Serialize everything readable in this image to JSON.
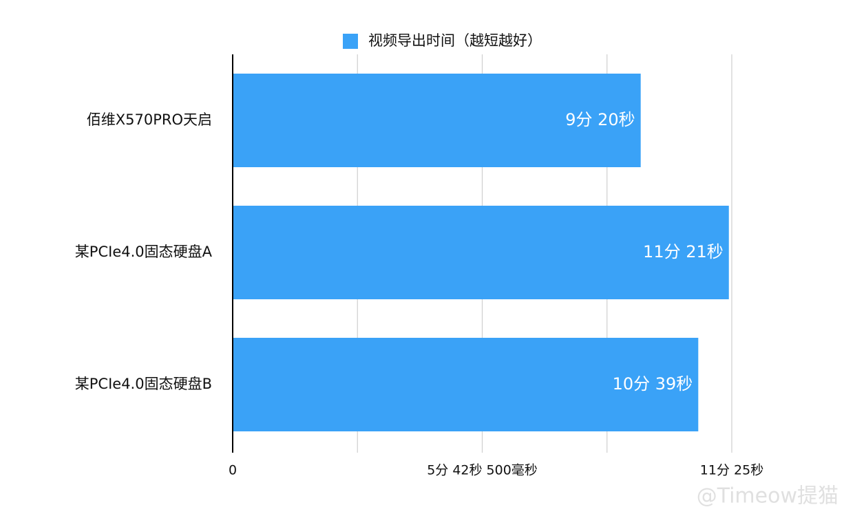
{
  "chart_data": {
    "type": "hbar",
    "legend": "视频导出时间（越短越好）",
    "color": "#3aa2f7",
    "categories": [
      "佰维X570PRO天启",
      "某PCIe4.0固态硬盘A",
      "某PCIe4.0固态硬盘B"
    ],
    "values": [
      560,
      681,
      639
    ],
    "value_labels": [
      "9分 20秒",
      "11分 21秒",
      "10分 39秒"
    ],
    "xlim": [
      0,
      685
    ],
    "xticks": [
      0,
      {
        "value": 171.25,
        "label": null
      },
      {
        "value": 342.5,
        "label": "5分 42秒 500毫秒"
      },
      {
        "value": 513.75,
        "label": null
      },
      {
        "value": 685,
        "label": "11分 25秒"
      }
    ],
    "grid": true,
    "watermark": "@Timeow提猫"
  }
}
